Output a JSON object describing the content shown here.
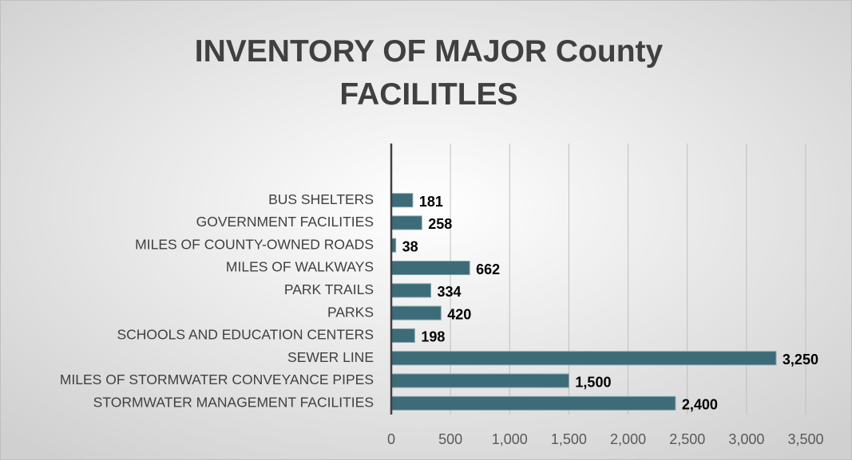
{
  "chart_data": {
    "type": "bar",
    "orientation": "horizontal",
    "title": "INVENTORY OF MAJOR County FACILITLES",
    "categories": [
      "BUS SHELTERS",
      "GOVERNMENT FACILITIES",
      "MILES OF COUNTY-OWNED ROADS",
      "MILES OF WALKWAYS",
      "PARK TRAILS",
      "PARKS",
      "SCHOOLS AND EDUCATION CENTERS",
      "SEWER LINE",
      "MILES OF STORMWATER CONVEYANCE PIPES",
      "STORMWATER MANAGEMENT FACILITIES"
    ],
    "values": [
      181,
      258,
      38,
      662,
      334,
      420,
      198,
      3250,
      1500,
      2400
    ],
    "value_labels": [
      "181",
      "258",
      "38",
      "662",
      "334",
      "420",
      "198",
      "3,250",
      "1,500",
      "2,400"
    ],
    "color": "#3d6b78",
    "xlim": [
      0,
      3500
    ],
    "xticks": [
      0,
      500,
      {
        "value": 1000,
        "label": "1,000"
      },
      {
        "value": 1500,
        "label": "1,500"
      },
      {
        "value": 2000,
        "label": "2,000"
      },
      {
        "value": 2500,
        "label": "2,500"
      },
      {
        "value": 3000,
        "label": "3,000"
      },
      {
        "value": 3500,
        "label": "3,500"
      }
    ],
    "grid": true
  }
}
